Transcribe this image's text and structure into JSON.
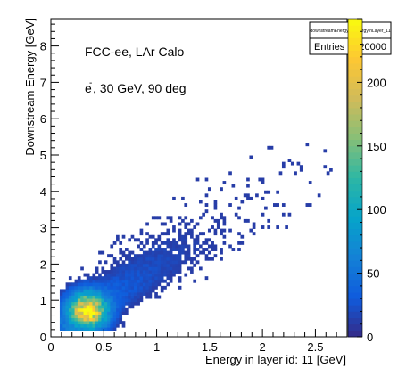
{
  "chart_data": {
    "type": "heatmap",
    "title": "",
    "xlabel": "Energy in layer id: 11 [GeV]",
    "ylabel": "Downstream Energy [GeV]",
    "xlim": [
      0,
      2.8
    ],
    "ylim": [
      0,
      8.75
    ],
    "x_ticks": [
      {
        "value": 0,
        "label": "0"
      },
      {
        "value": 0.5,
        "label": "0.5"
      },
      {
        "value": 1,
        "label": "1"
      },
      {
        "value": 1.5,
        "label": "1.5"
      },
      {
        "value": 2,
        "label": "2"
      },
      {
        "value": 2.5,
        "label": "2.5"
      }
    ],
    "y_ticks": [
      {
        "value": 0,
        "label": "0"
      },
      {
        "value": 1,
        "label": "1"
      },
      {
        "value": 2,
        "label": "2"
      },
      {
        "value": 3,
        "label": "3"
      },
      {
        "value": 4,
        "label": "4"
      },
      {
        "value": 5,
        "label": "5"
      },
      {
        "value": 6,
        "label": "6"
      },
      {
        "value": 7,
        "label": "7"
      },
      {
        "value": 8,
        "label": "8"
      }
    ],
    "z_range": [
      0,
      250
    ],
    "z_ticks": [
      {
        "value": 0,
        "label": "0"
      },
      {
        "value": 50,
        "label": "50"
      },
      {
        "value": 100,
        "label": "100"
      },
      {
        "value": 150,
        "label": "150"
      },
      {
        "value": 200,
        "label": "200"
      }
    ],
    "annotations": [
      {
        "text": "FCC-ee, LAr Calo",
        "x": 0.32,
        "y": 7.6
      },
      {
        "text": "e",
        "x": 0.32,
        "y": 6.6
      },
      {
        "text": "-",
        "x": 0.37,
        "y": 6.82
      },
      {
        "text": ", 30 GeV, 90 deg",
        "x": 0.39,
        "y": 6.6
      }
    ],
    "stats_box": {
      "title": "downstreamEnergy_...energyInLayer_11",
      "entries_label": "Entries",
      "entries_value": "20000"
    },
    "distribution": {
      "core_x": 0.35,
      "core_y": 0.72,
      "slope_y_per_x": 2.1,
      "peak_count": 235,
      "total_entries": 20000
    },
    "palette": [
      "#352a87",
      "#0f5cdd",
      "#1481d6",
      "#06a4ca",
      "#2eb7a4",
      "#87bf77",
      "#d1bb59",
      "#fec832",
      "#f9fb0e"
    ]
  }
}
